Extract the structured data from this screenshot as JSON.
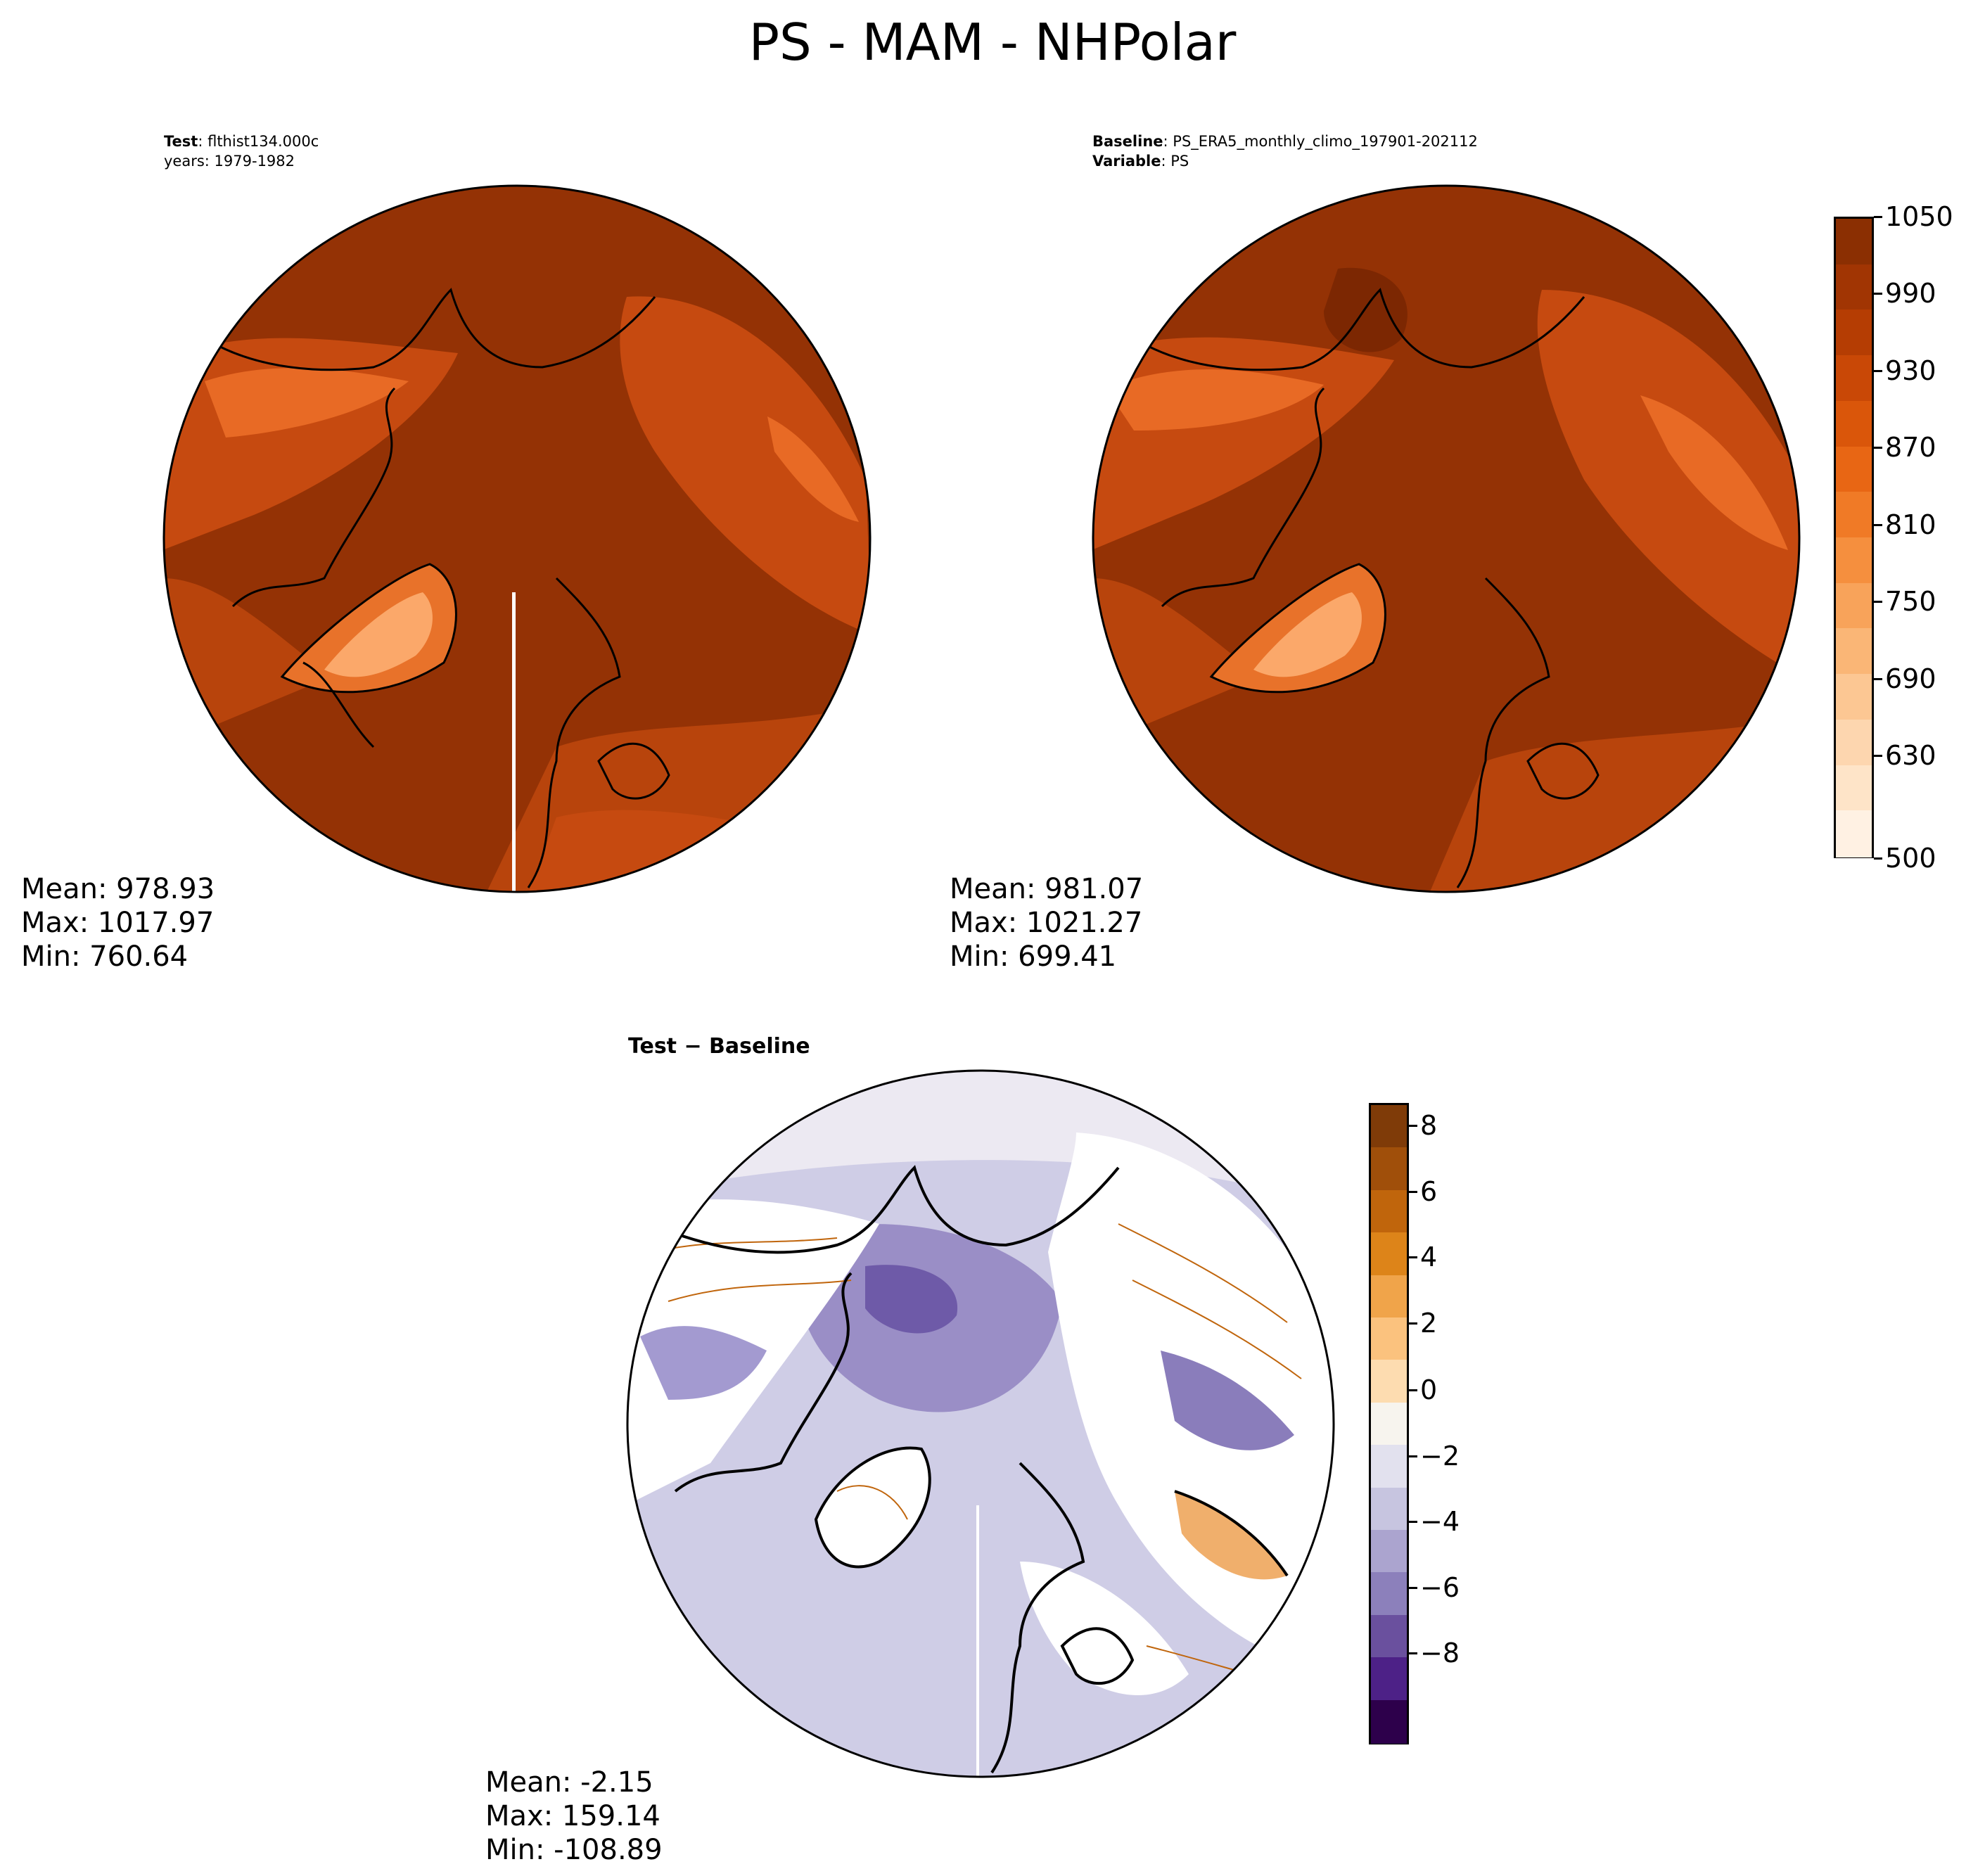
{
  "title": "PS - MAM - NHPolar",
  "panels": {
    "test": {
      "label_key": "Test",
      "label_value": "flthist134.000c",
      "years": "years: 1979-1982",
      "stats": {
        "mean": "Mean: 978.93",
        "max": "Max: 1017.97",
        "min": "Min: 760.64"
      }
    },
    "baseline": {
      "label_key": "Baseline",
      "label_value": "PS_ERA5_monthly_climo_197901-202112",
      "variable_key": "Variable",
      "variable_value": "PS",
      "stats": {
        "mean": "Mean: 981.07",
        "max": "Max: 1021.27",
        "min": "Min: 699.41"
      }
    },
    "diff": {
      "title": "Test − Baseline",
      "stats": {
        "mean": "Mean: -2.15",
        "max": "Max: 159.14",
        "min": "Min: -108.89"
      }
    }
  },
  "colorbars": {
    "main": {
      "ticks": [
        "1050",
        "990",
        "930",
        "870",
        "810",
        "750",
        "690",
        "630",
        "500"
      ],
      "colors": [
        "#8b2f02",
        "#a13503",
        "#b53d03",
        "#c94806",
        "#da560a",
        "#e86614",
        "#f07a26",
        "#f58f3e",
        "#f8a35a",
        "#fab676",
        "#fcc793",
        "#fdd6af",
        "#fee4c8",
        "#fff1e3"
      ]
    },
    "diff": {
      "ticks": [
        "8",
        "6",
        "4",
        "2",
        "0",
        "−2",
        "−4",
        "−6",
        "−8"
      ],
      "colors": [
        "#7f3b08",
        "#a04f0a",
        "#c0650c",
        "#dd8419",
        "#f0a44a",
        "#fbc27e",
        "#fddcb0",
        "#f7f4ee",
        "#e2e1ee",
        "#c7c5e0",
        "#aba4cf",
        "#8c80bb",
        "#6a509e",
        "#4d2187",
        "#2d004b"
      ]
    }
  },
  "map_colors": {
    "ocean_high": "#943205",
    "land_mid": "#c64a10",
    "land_low": "#e86a25",
    "greenland": "#fba86a",
    "diff_ocean": "#cfcde6",
    "diff_arctic": "#6e5aa8",
    "diff_land": "#ffffff",
    "diff_pos": "#e98d2d",
    "coast": "#000000"
  }
}
